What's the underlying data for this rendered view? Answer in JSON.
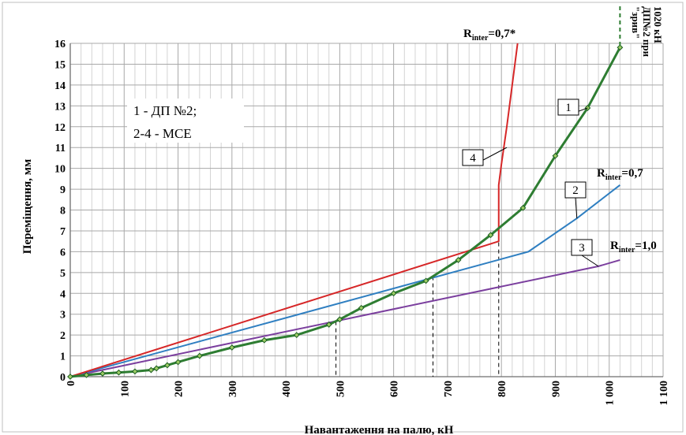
{
  "chart_data": {
    "type": "line",
    "xlabel": "Навантаження на палю, кН",
    "ylabel": "Переміщення, мм",
    "xlim": [
      0,
      1100
    ],
    "ylim": [
      0,
      16
    ],
    "xticks": [
      "0",
      "100",
      "200",
      "300",
      "400",
      "500",
      "600",
      "700",
      "800",
      "900",
      "1 000",
      "1 100"
    ],
    "yticks": [
      "0",
      "1",
      "2",
      "3",
      "4",
      "5",
      "6",
      "7",
      "8",
      "9",
      "10",
      "11",
      "12",
      "13",
      "14",
      "15",
      "16"
    ],
    "grid": true,
    "legend_box": {
      "line1": "1 - ДП №2;",
      "line2": "2-4 - МСЕ"
    },
    "series": [
      {
        "id": "1",
        "color": "#2e7d32",
        "marker": "diamond",
        "x": [
          0,
          30,
          60,
          90,
          120,
          150,
          160,
          180,
          200,
          240,
          300,
          360,
          420,
          480,
          500,
          540,
          600,
          660,
          720,
          780,
          840,
          900,
          960,
          1020
        ],
        "y": [
          0,
          0.08,
          0.15,
          0.2,
          0.25,
          0.32,
          0.4,
          0.55,
          0.7,
          1.0,
          1.4,
          1.75,
          2.0,
          2.5,
          2.75,
          3.3,
          4.0,
          4.6,
          5.6,
          6.8,
          8.1,
          10.6,
          12.9,
          15.8
        ]
      },
      {
        "id": "2",
        "color": "#2f7fc1",
        "x": [
          0,
          850,
          940,
          1020
        ],
        "y": [
          0,
          6.0,
          7.6,
          9.2
        ]
      },
      {
        "id": "3",
        "color": "#7b3f9e",
        "x": [
          0,
          980,
          1020
        ],
        "y": [
          0,
          5.3,
          5.6
        ]
      },
      {
        "id": "4",
        "color": "#d62728",
        "x": [
          0,
          795,
          795,
          800,
          810,
          820,
          830
        ],
        "y": [
          0,
          6.5,
          9.2,
          10.2,
          12.0,
          14.0,
          16.0
        ]
      }
    ],
    "vertical_guides_x": [
      493,
      673,
      795
    ],
    "breakout": {
      "x": 1020,
      "text_lines": [
        "\"зрив\"",
        "ДП№2 при",
        "1020 кН"
      ]
    },
    "annotations": {
      "r_inter_07_star": {
        "base": "R",
        "sub": "inter",
        "value": "=0,7*"
      },
      "r_inter_07": {
        "base": "R",
        "sub": "inter",
        "value": "=0,7"
      },
      "r_inter_10": {
        "base": "R",
        "sub": "inter",
        "value": "=1,0"
      }
    },
    "callouts": [
      {
        "label": "1",
        "target": [
          960,
          12.9
        ]
      },
      {
        "label": "2",
        "target": [
          940,
          7.6
        ]
      },
      {
        "label": "3",
        "target": [
          980,
          5.3
        ]
      },
      {
        "label": "4",
        "target": [
          810,
          11.0
        ]
      }
    ]
  }
}
